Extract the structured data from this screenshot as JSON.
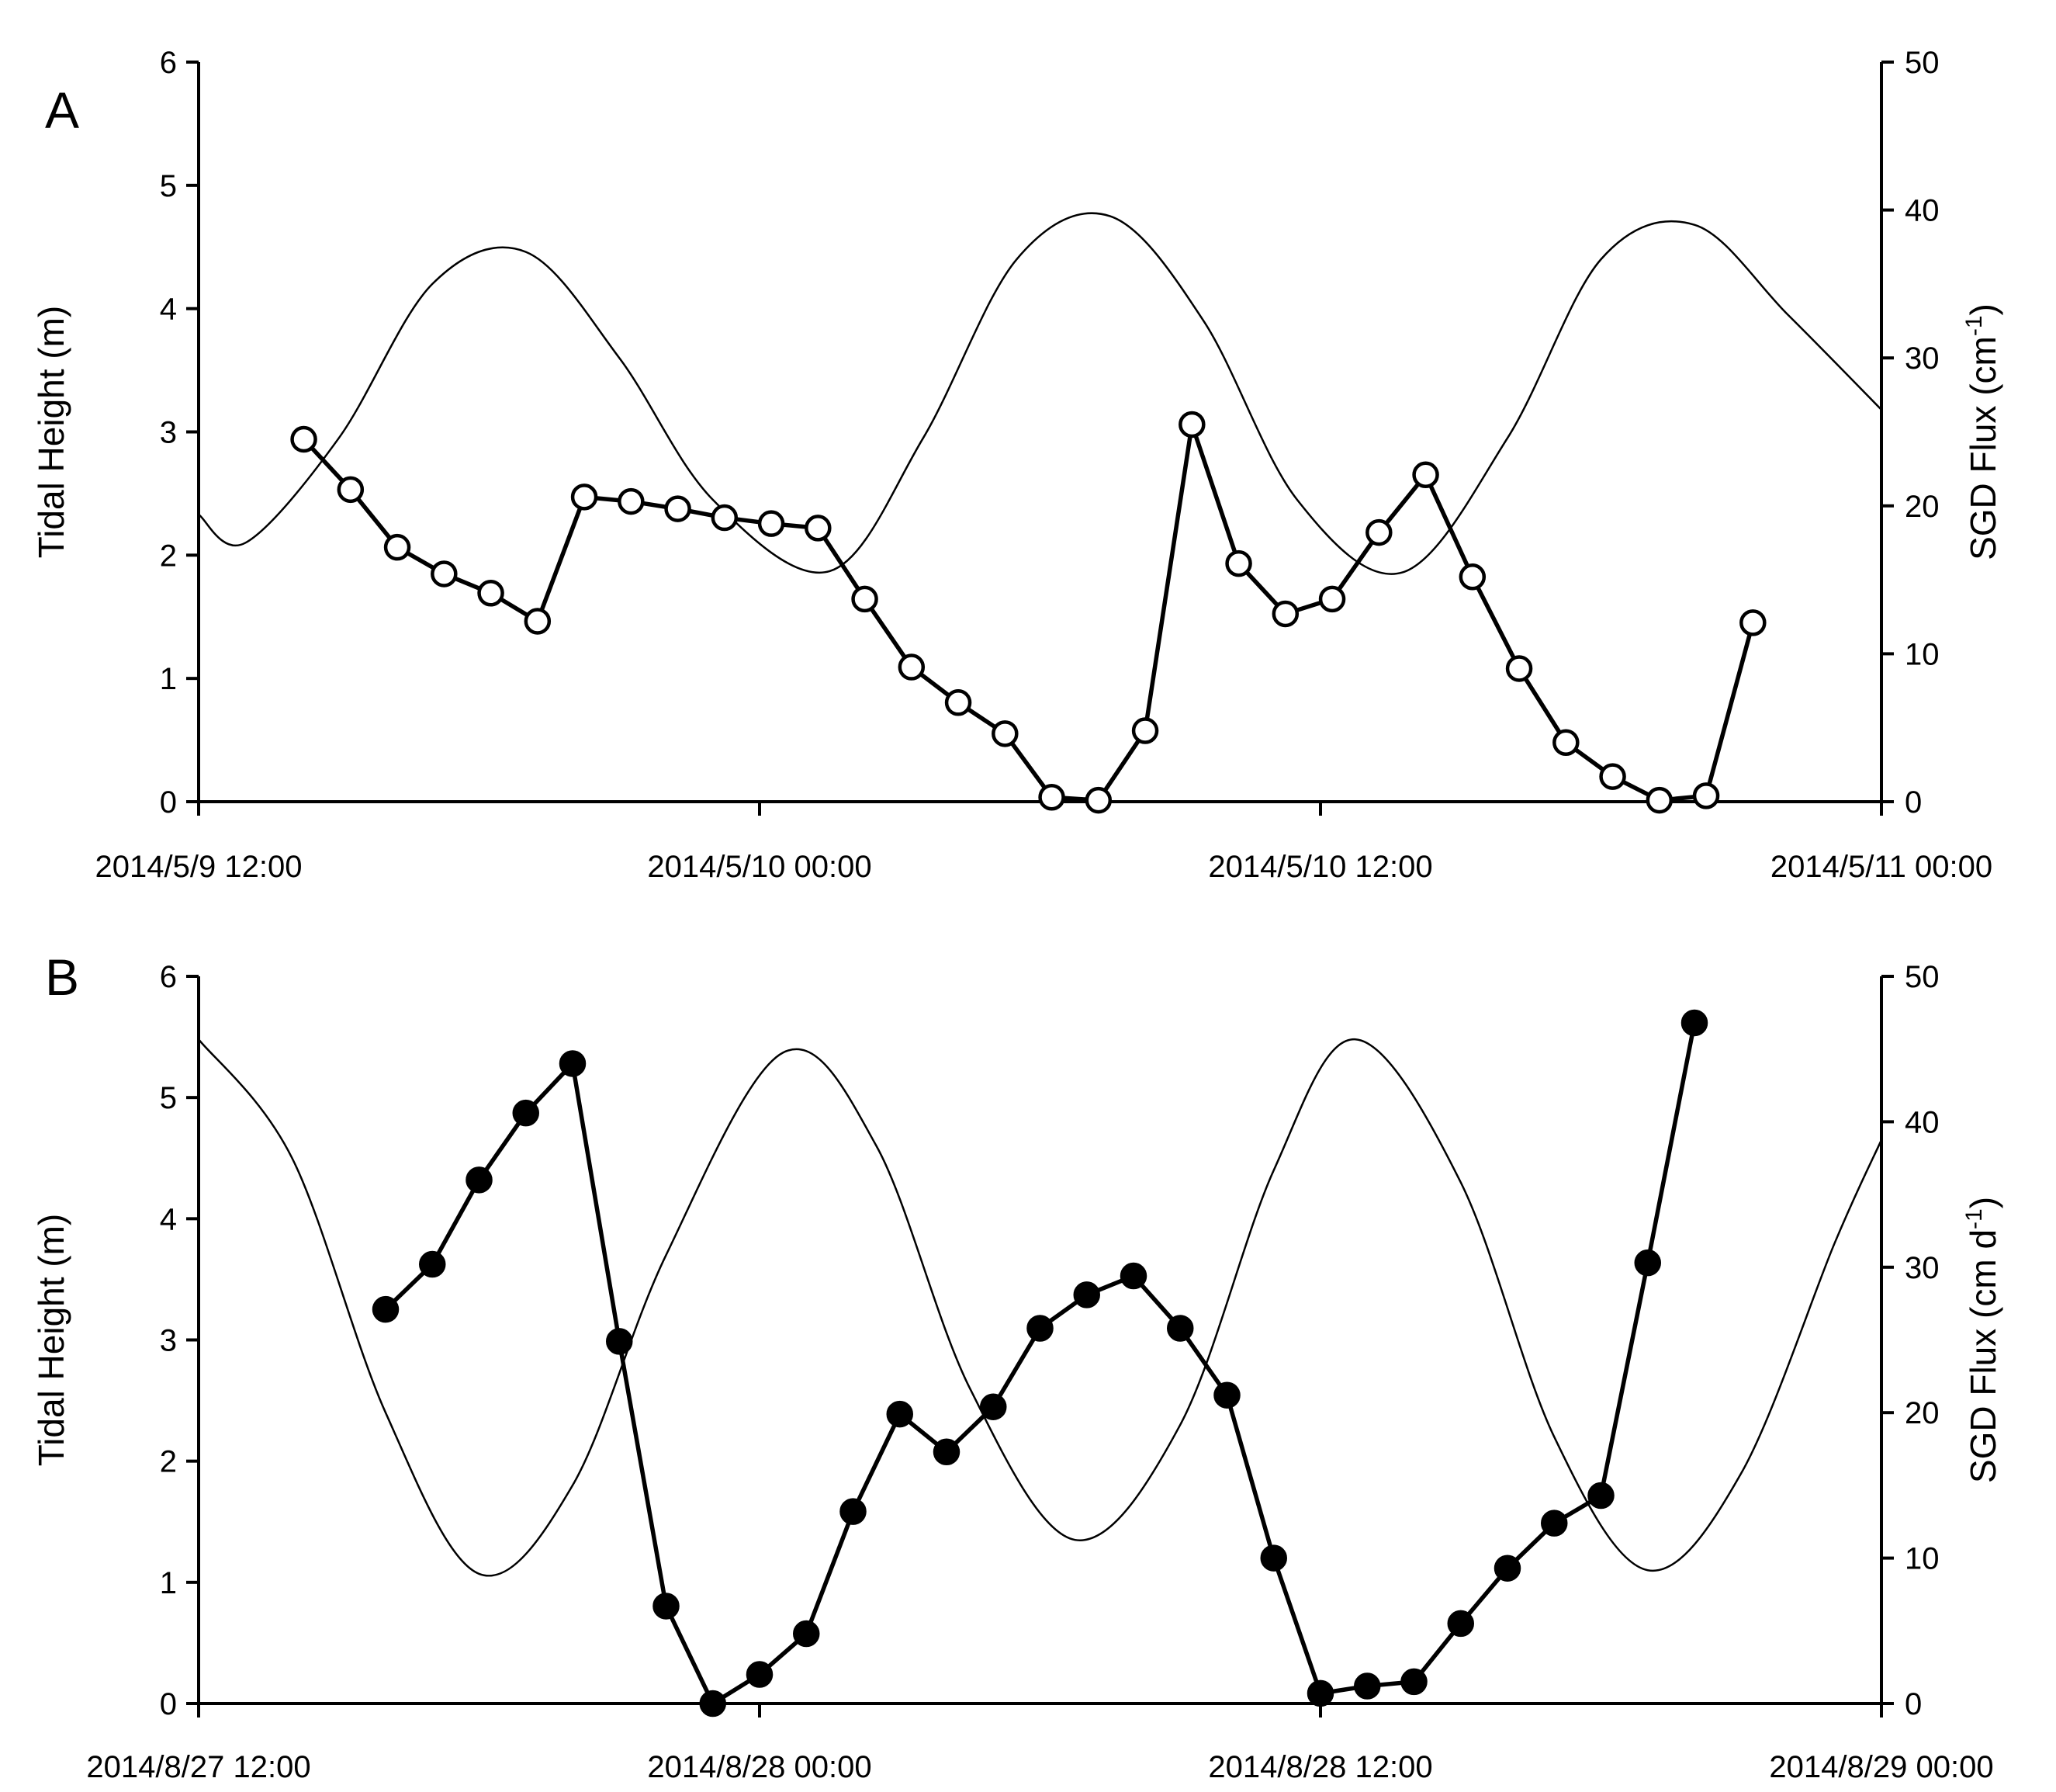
{
  "chart_data": [
    {
      "type": "line",
      "panel_label": "A",
      "ylabel_left": "Tidal Height (m)",
      "ylabel_right_prefix": "SGD Flux (cm",
      "ylabel_right_super": "-1",
      "ylabel_right_suffix": ")",
      "ylim_left": [
        0,
        6
      ],
      "ylim_right": [
        0,
        50
      ],
      "yticks_left": [
        "0",
        "1",
        "2",
        "3",
        "4",
        "5",
        "6"
      ],
      "yticks_right": [
        "0",
        "10",
        "20",
        "30",
        "40",
        "50"
      ],
      "xlim": [
        "2014-05-09T12:00",
        "2014-05-11T00:00"
      ],
      "xticks": [
        "2014/5/9 12:00",
        "2014/5/10 00:00",
        "2014/5/10 12:00",
        "2014/5/11 00:00"
      ],
      "tide": {
        "style": "thin-line",
        "points": [
          [
            "2014-05-09T12:00",
            2.33
          ],
          [
            "2014-05-09T13:00",
            2.1
          ],
          [
            "2014-05-09T15:00",
            2.95
          ],
          [
            "2014-05-09T17:00",
            4.2
          ],
          [
            "2014-05-09T19:00",
            4.46
          ],
          [
            "2014-05-09T21:00",
            3.6
          ],
          [
            "2014-05-09T23:00",
            2.45
          ],
          [
            "2014-05-10T01:30",
            1.87
          ],
          [
            "2014-05-10T03:30",
            2.95
          ],
          [
            "2014-05-10T05:30",
            4.4
          ],
          [
            "2014-05-10T07:30",
            4.75
          ],
          [
            "2014-05-10T09:30",
            3.9
          ],
          [
            "2014-05-10T11:30",
            2.45
          ],
          [
            "2014-05-10T13:45",
            1.86
          ],
          [
            "2014-05-10T16:00",
            2.95
          ],
          [
            "2014-05-10T18:00",
            4.4
          ],
          [
            "2014-05-10T20:00",
            4.68
          ],
          [
            "2014-05-10T22:00",
            3.95
          ],
          [
            "2014-05-11T00:00",
            3.18
          ]
        ]
      },
      "sgd": {
        "marker": "open-circle",
        "points": [
          [
            "2014-05-09T14:15",
            24.5
          ],
          [
            "2014-05-09T15:15",
            21.1
          ],
          [
            "2014-05-09T16:15",
            17.2
          ],
          [
            "2014-05-09T17:15",
            15.4
          ],
          [
            "2014-05-09T18:15",
            14.1
          ],
          [
            "2014-05-09T19:15",
            12.2
          ],
          [
            "2014-05-09T20:15",
            20.6
          ],
          [
            "2014-05-09T21:15",
            20.3
          ],
          [
            "2014-05-09T22:15",
            19.8
          ],
          [
            "2014-05-09T23:15",
            19.2
          ],
          [
            "2014-05-10T00:15",
            18.8
          ],
          [
            "2014-05-10T01:15",
            18.5
          ],
          [
            "2014-05-10T02:15",
            13.7
          ],
          [
            "2014-05-10T03:15",
            9.1
          ],
          [
            "2014-05-10T04:15",
            6.7
          ],
          [
            "2014-05-10T05:15",
            4.6
          ],
          [
            "2014-05-10T06:15",
            0.3
          ],
          [
            "2014-05-10T07:15",
            0.1
          ],
          [
            "2014-05-10T08:15",
            4.8
          ],
          [
            "2014-05-10T09:15",
            25.5
          ],
          [
            "2014-05-10T10:15",
            16.1
          ],
          [
            "2014-05-10T11:15",
            12.7
          ],
          [
            "2014-05-10T12:15",
            13.7
          ],
          [
            "2014-05-10T13:15",
            18.2
          ],
          [
            "2014-05-10T14:15",
            22.1
          ],
          [
            "2014-05-10T15:15",
            15.2
          ],
          [
            "2014-05-10T16:15",
            9.0
          ],
          [
            "2014-05-10T17:15",
            4.0
          ],
          [
            "2014-05-10T18:15",
            1.7
          ],
          [
            "2014-05-10T19:15",
            0.1
          ],
          [
            "2014-05-10T20:15",
            0.4
          ],
          [
            "2014-05-10T21:15",
            12.1
          ]
        ]
      }
    },
    {
      "type": "line",
      "panel_label": "B",
      "ylabel_left": "Tidal Height (m)",
      "ylabel_right_prefix": "SGD Flux (cm d",
      "ylabel_right_super": "-1",
      "ylabel_right_suffix": ")",
      "ylim_left": [
        0,
        6
      ],
      "ylim_right": [
        0,
        50
      ],
      "yticks_left": [
        "0",
        "1",
        "2",
        "3",
        "4",
        "5",
        "6"
      ],
      "yticks_right": [
        "0",
        "10",
        "20",
        "30",
        "40",
        "50"
      ],
      "xlim": [
        "2014-08-27T12:00",
        "2014-08-29T00:00"
      ],
      "xticks": [
        "2014/8/27 12:00",
        "2014/8/28 00:00",
        "2014/8/28 12:00",
        "2014/8/29 00:00"
      ],
      "tide": {
        "style": "thin-line",
        "points": [
          [
            "2014-08-27T12:00",
            5.48
          ],
          [
            "2014-08-27T14:00",
            4.5
          ],
          [
            "2014-08-27T16:00",
            2.4
          ],
          [
            "2014-08-27T18:00",
            1.07
          ],
          [
            "2014-08-27T20:00",
            1.8
          ],
          [
            "2014-08-27T22:00",
            3.7
          ],
          [
            "2014-08-28T00:30",
            5.37
          ],
          [
            "2014-08-28T02:30",
            4.6
          ],
          [
            "2014-08-28T04:30",
            2.6
          ],
          [
            "2014-08-28T06:45",
            1.35
          ],
          [
            "2014-08-28T09:00",
            2.3
          ],
          [
            "2014-08-28T11:00",
            4.4
          ],
          [
            "2014-08-28T12:45",
            5.48
          ],
          [
            "2014-08-28T15:00",
            4.3
          ],
          [
            "2014-08-28T17:00",
            2.2
          ],
          [
            "2014-08-28T19:00",
            1.1
          ],
          [
            "2014-08-28T21:00",
            1.9
          ],
          [
            "2014-08-28T23:00",
            3.8
          ],
          [
            "2014-08-29T00:00",
            4.65
          ]
        ]
      },
      "sgd": {
        "marker": "filled-circle",
        "points": [
          [
            "2014-08-27T16:00",
            27.1
          ],
          [
            "2014-08-27T17:00",
            30.2
          ],
          [
            "2014-08-27T18:00",
            36.0
          ],
          [
            "2014-08-27T19:00",
            40.6
          ],
          [
            "2014-08-27T20:00",
            44.0
          ],
          [
            "2014-08-27T21:00",
            24.9
          ],
          [
            "2014-08-27T22:00",
            6.7
          ],
          [
            "2014-08-27T23:00",
            0.0
          ],
          [
            "2014-08-28T00:00",
            2.0
          ],
          [
            "2014-08-28T01:00",
            4.8
          ],
          [
            "2014-08-28T02:00",
            13.2
          ],
          [
            "2014-08-28T03:00",
            19.9
          ],
          [
            "2014-08-28T04:00",
            17.3
          ],
          [
            "2014-08-28T05:00",
            20.4
          ],
          [
            "2014-08-28T06:00",
            25.8
          ],
          [
            "2014-08-28T07:00",
            28.1
          ],
          [
            "2014-08-28T08:00",
            29.4
          ],
          [
            "2014-08-28T09:00",
            25.8
          ],
          [
            "2014-08-28T10:00",
            21.2
          ],
          [
            "2014-08-28T11:00",
            10.0
          ],
          [
            "2014-08-28T12:00",
            0.7
          ],
          [
            "2014-08-28T13:00",
            1.2
          ],
          [
            "2014-08-28T14:00",
            1.5
          ],
          [
            "2014-08-28T15:00",
            5.5
          ],
          [
            "2014-08-28T16:00",
            9.3
          ],
          [
            "2014-08-28T17:00",
            12.4
          ],
          [
            "2014-08-28T18:00",
            14.3
          ],
          [
            "2014-08-28T19:00",
            30.3
          ],
          [
            "2014-08-28T20:00",
            46.8
          ]
        ]
      }
    }
  ]
}
